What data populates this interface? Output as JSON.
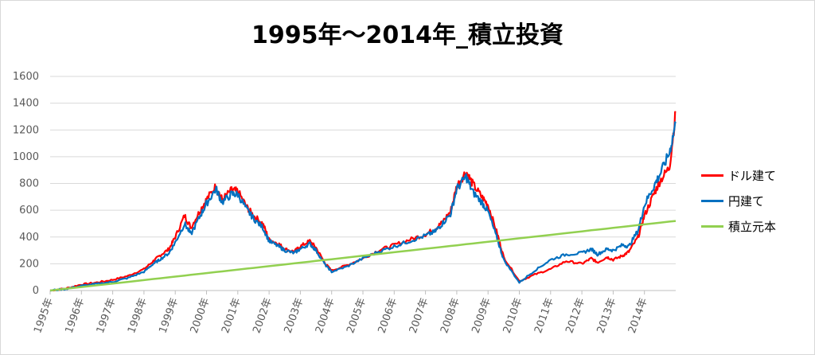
{
  "chart_data": {
    "type": "line",
    "title": "1995年～2014年_積立投資",
    "xlabel": "",
    "ylabel": "",
    "ylim": [
      0,
      1600
    ],
    "y_ticks": [
      "0",
      "200",
      "400",
      "600",
      "800",
      "1000",
      "1200",
      "1400",
      "1600"
    ],
    "x_ticks": [
      "1995年",
      "1996年",
      "1997年",
      "1998年",
      "1999年",
      "2000年",
      "2001年",
      "2002年",
      "2003年",
      "2004年",
      "2005年",
      "2006年",
      "2007年",
      "2008年",
      "2009年",
      "2010年",
      "2011年",
      "2012年",
      "2013年",
      "2014年"
    ],
    "grid": true,
    "legend_position": "right",
    "x": [
      1995.0,
      1995.5,
      1996.0,
      1996.5,
      1997.0,
      1997.5,
      1998.0,
      1998.3,
      1998.5,
      1998.8,
      1999.0,
      1999.3,
      1999.5,
      1999.8,
      2000.0,
      2000.3,
      2000.5,
      2000.8,
      2001.0,
      2001.3,
      2001.5,
      2001.8,
      2002.0,
      2002.3,
      2002.5,
      2002.8,
      2003.0,
      2003.3,
      2003.5,
      2003.8,
      2004.0,
      2004.5,
      2005.0,
      2005.5,
      2006.0,
      2006.5,
      2007.0,
      2007.3,
      2007.5,
      2007.8,
      2008.0,
      2008.3,
      2008.5,
      2008.8,
      2009.0,
      2009.3,
      2009.5,
      2010.0,
      2010.5,
      2011.0,
      2011.5,
      2012.0,
      2012.3,
      2012.5,
      2012.8,
      2013.0,
      2013.3,
      2013.5,
      2013.8,
      2014.0,
      2014.3,
      2014.5,
      2014.8,
      2015.0
    ],
    "series": [
      {
        "name": "ドル建て",
        "color": "#ff0000",
        "values": [
          0,
          15,
          45,
          60,
          80,
          110,
          160,
          220,
          260,
          310,
          400,
          560,
          470,
          600,
          680,
          780,
          680,
          750,
          740,
          620,
          560,
          500,
          380,
          350,
          310,
          290,
          330,
          370,
          320,
          200,
          150,
          190,
          240,
          300,
          340,
          380,
          420,
          460,
          500,
          590,
          780,
          890,
          800,
          700,
          640,
          420,
          250,
          70,
          120,
          160,
          220,
          200,
          240,
          210,
          250,
          230,
          260,
          290,
          400,
          560,
          720,
          820,
          920,
          1330
        ]
      },
      {
        "name": "円建て",
        "color": "#0070c0",
        "values": [
          0,
          12,
          35,
          50,
          65,
          95,
          140,
          200,
          230,
          280,
          360,
          500,
          420,
          560,
          650,
          760,
          660,
          720,
          720,
          600,
          540,
          470,
          370,
          330,
          300,
          280,
          310,
          350,
          300,
          190,
          140,
          180,
          240,
          290,
          330,
          370,
          410,
          440,
          490,
          570,
          760,
          850,
          740,
          660,
          590,
          380,
          230,
          60,
          150,
          230,
          270,
          280,
          310,
          270,
          310,
          300,
          340,
          330,
          450,
          640,
          780,
          870,
          1030,
          1250
        ]
      },
      {
        "name": "積立元本",
        "color": "#92d050",
        "values": [
          0,
          13,
          26,
          39,
          52,
          65,
          78,
          86,
          91,
          99,
          104,
          112,
          117,
          125,
          130,
          138,
          143,
          151,
          156,
          164,
          169,
          177,
          182,
          190,
          195,
          203,
          208,
          216,
          221,
          229,
          234,
          247,
          260,
          273,
          286,
          299,
          312,
          320,
          325,
          333,
          338,
          346,
          351,
          359,
          364,
          372,
          377,
          390,
          403,
          416,
          429,
          442,
          450,
          455,
          463,
          468,
          476,
          481,
          489,
          494,
          502,
          507,
          515,
          520
        ]
      }
    ]
  }
}
